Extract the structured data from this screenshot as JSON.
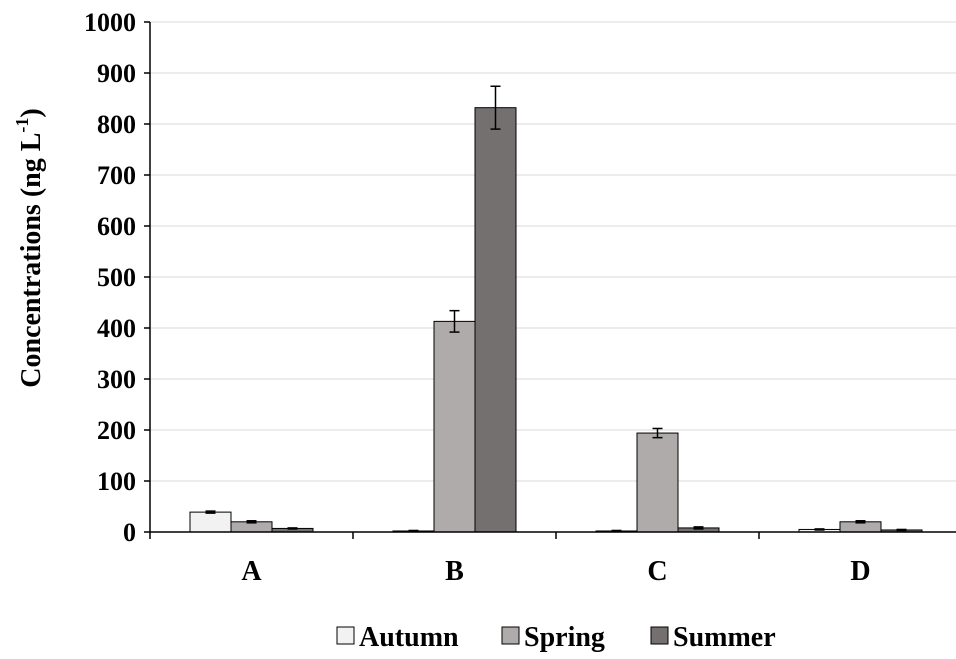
{
  "chart_data": {
    "type": "bar",
    "title": "",
    "xlabel": "",
    "ylabel": {
      "main": "Concentrations (ng  L",
      "sup": "-1",
      "close": ")"
    },
    "ylim": [
      0,
      1000
    ],
    "yticks": [
      0,
      100,
      200,
      300,
      400,
      500,
      600,
      700,
      800,
      900,
      1000
    ],
    "grid": "horizontal",
    "legend_position": "bottom-center",
    "categories": [
      "A",
      "B",
      "C",
      "D"
    ],
    "series": [
      {
        "name": "Autumn",
        "color": "#f2f2f2",
        "values": [
          39,
          2,
          2,
          5
        ],
        "errors": [
          2,
          1,
          1,
          1
        ]
      },
      {
        "name": "Spring",
        "color": "#afabab",
        "values": [
          20,
          413,
          194,
          20
        ],
        "errors": [
          2,
          21,
          9,
          2
        ]
      },
      {
        "name": "Summer",
        "color": "#747070",
        "values": [
          7,
          832,
          8,
          4
        ],
        "errors": [
          1,
          42,
          2,
          1
        ]
      }
    ]
  }
}
